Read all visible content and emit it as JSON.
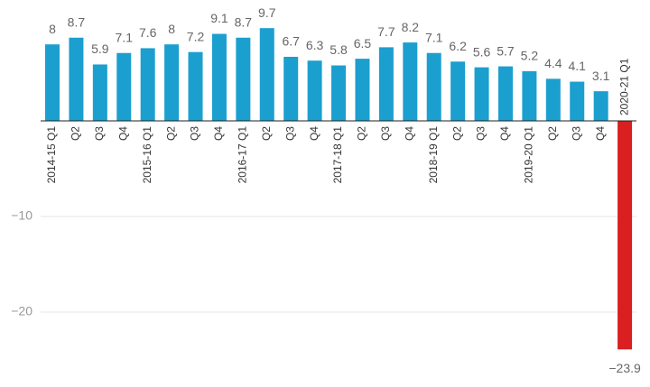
{
  "chart_data": {
    "type": "bar",
    "categories": [
      "2014-15 Q1",
      "Q2",
      "Q3",
      "Q4",
      "2015-16 Q1",
      "Q2",
      "Q3",
      "Q4",
      "2016-17 Q1",
      "Q2",
      "Q3",
      "Q4",
      "2017-18 Q1",
      "Q2",
      "Q3",
      "Q4",
      "2018-19 Q1",
      "Q2",
      "Q3",
      "Q4",
      "2019-20 Q1",
      "Q2",
      "Q3",
      "Q4",
      "2020-21 Q1"
    ],
    "values": [
      8,
      8.7,
      5.9,
      7.1,
      7.6,
      8,
      7.2,
      9.1,
      8.7,
      9.7,
      6.7,
      6.3,
      5.8,
      6.5,
      7.7,
      8.2,
      7.1,
      6.2,
      5.6,
      5.7,
      5.2,
      4.4,
      4.1,
      3.1,
      -23.9
    ],
    "value_labels": [
      "8",
      "8.7",
      "5.9",
      "7.1",
      "7.6",
      "8",
      "7.2",
      "9.1",
      "8.7",
      "9.7",
      "6.7",
      "6.3",
      "5.8",
      "6.5",
      "7.7",
      "8.2",
      "7.1",
      "6.2",
      "5.6",
      "5.7",
      "5.2",
      "4.4",
      "4.1",
      "3.1",
      "−23.9"
    ],
    "color": "#1b9fcf",
    "negative_color": "#d91f1f",
    "ylim": [
      -27,
      12.5
    ],
    "yticks": [
      {
        "value": -10,
        "label": "−10"
      },
      {
        "value": -20,
        "label": "−20"
      }
    ],
    "grid": true
  }
}
